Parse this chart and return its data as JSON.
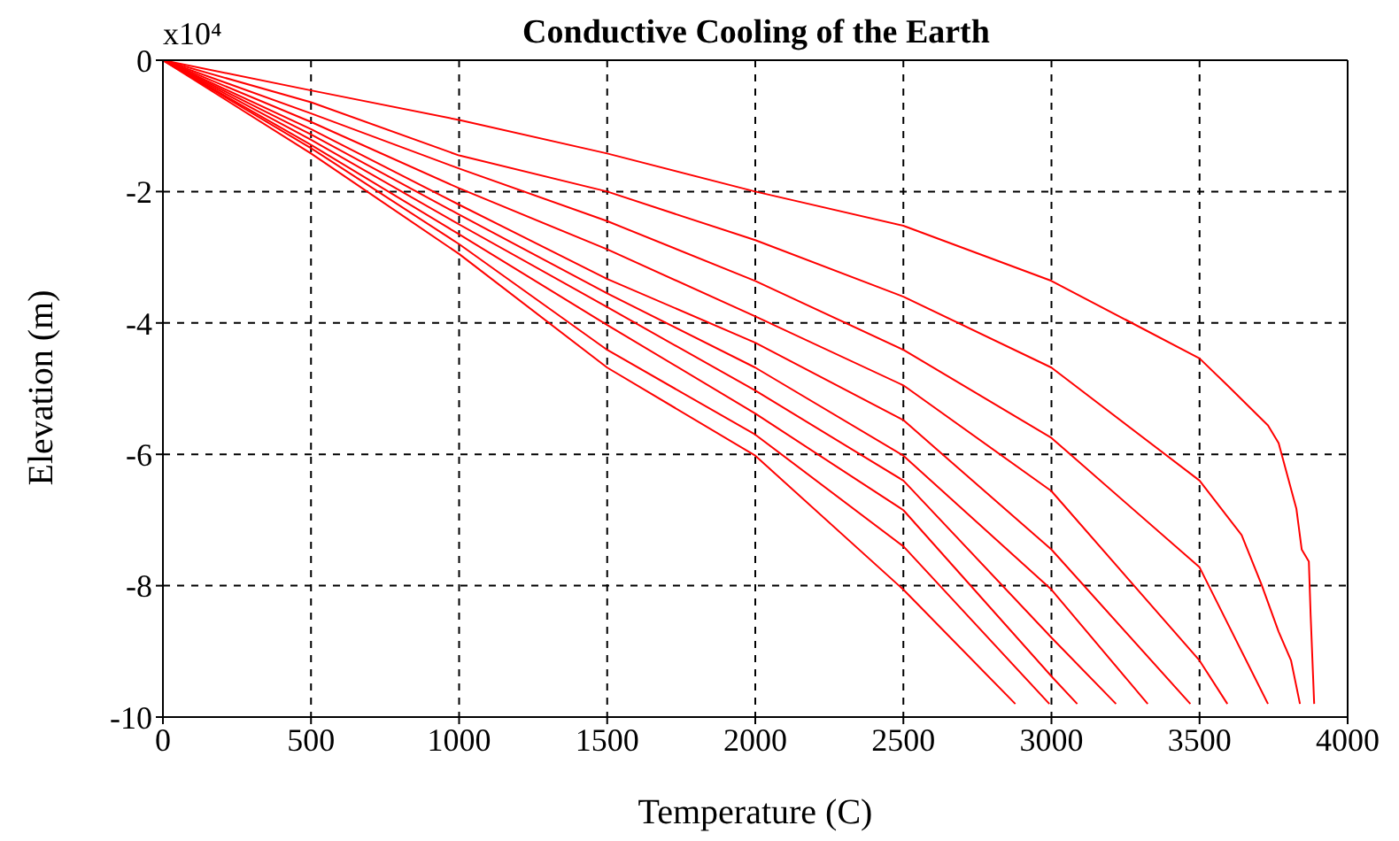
{
  "chart_data": {
    "type": "line",
    "title": "Conductive Cooling of the Earth",
    "xlabel": "Temperature (C)",
    "ylabel": "Elevation (m)",
    "annotations": [
      "x10⁴"
    ],
    "xlim": [
      0,
      4000
    ],
    "xticks": [
      0,
      500,
      1000,
      1500,
      2000,
      2500,
      3000,
      3500,
      4000
    ],
    "ylim": [
      -10,
      0
    ],
    "yticks": [
      -10,
      -8,
      -6,
      -4,
      -2,
      0
    ],
    "grid": true,
    "series": [
      {
        "color": "#ff0000",
        "x": [
          0,
          500,
          1000,
          1500,
          2000,
          2500,
          2878
        ],
        "values": [
          0,
          -1.42,
          -2.95,
          -4.68,
          -6.02,
          -8.06,
          -9.8
        ]
      },
      {
        "color": "#ff0000",
        "x": [
          0,
          500,
          1000,
          1500,
          2000,
          2500,
          2993
        ],
        "values": [
          0,
          -1.34,
          -2.8,
          -4.41,
          -5.7,
          -7.4,
          -9.8
        ]
      },
      {
        "color": "#ff0000",
        "x": [
          0,
          500,
          1000,
          1500,
          2000,
          2500,
          3000,
          3087
        ],
        "values": [
          0,
          -1.29,
          -2.65,
          -4.03,
          -5.38,
          -6.85,
          -9.38,
          -9.8
        ]
      },
      {
        "color": "#ff0000",
        "x": [
          0,
          500,
          1000,
          1500,
          2000,
          2500,
          3000,
          3218
        ],
        "values": [
          0,
          -1.21,
          -2.5,
          -3.76,
          -5.03,
          -6.4,
          -8.79,
          -9.8
        ]
      },
      {
        "color": "#ff0000",
        "x": [
          0,
          500,
          1000,
          1500,
          2000,
          2500,
          3000,
          3325
        ],
        "values": [
          0,
          -1.13,
          -2.35,
          -3.55,
          -4.68,
          -6.02,
          -8.06,
          -9.8
        ]
      },
      {
        "color": "#ff0000",
        "x": [
          0,
          500,
          1000,
          1500,
          2000,
          2500,
          3000,
          3469
        ],
        "values": [
          0,
          -1.05,
          -2.2,
          -3.33,
          -4.3,
          -5.48,
          -7.45,
          -9.8
        ]
      },
      {
        "color": "#ff0000",
        "x": [
          0,
          500,
          1000,
          1500,
          2000,
          2500,
          3000,
          3500,
          3594
        ],
        "values": [
          0,
          -0.94,
          -1.95,
          -2.88,
          -3.9,
          -4.95,
          -6.56,
          -9.14,
          -9.8
        ]
      },
      {
        "color": "#ff0000",
        "x": [
          0,
          500,
          1000,
          1500,
          2000,
          2500,
          3000,
          3500,
          3731
        ],
        "values": [
          0,
          -0.81,
          -1.65,
          -2.45,
          -3.36,
          -4.41,
          -5.75,
          -7.72,
          -9.8
        ]
      },
      {
        "color": "#ff0000",
        "x": [
          0,
          500,
          1000,
          1500,
          2000,
          2500,
          3000,
          3500,
          3642,
          3709,
          3767,
          3809,
          3839
        ],
        "values": [
          0,
          -0.64,
          -1.45,
          -2.0,
          -2.74,
          -3.6,
          -4.68,
          -6.4,
          -7.23,
          -7.98,
          -8.7,
          -9.14,
          -9.8
        ]
      },
      {
        "color": "#ff0000",
        "x": [
          0,
          500,
          1000,
          1500,
          2000,
          2500,
          3000,
          3500,
          3594,
          3731,
          3767,
          3827,
          3845,
          3869,
          3875,
          3887
        ],
        "values": [
          0,
          -0.46,
          -0.91,
          -1.42,
          -2.0,
          -2.52,
          -3.36,
          -4.54,
          -4.95,
          -5.56,
          -5.83,
          -6.83,
          -7.45,
          -7.63,
          -8.44,
          -9.8
        ]
      }
    ]
  }
}
